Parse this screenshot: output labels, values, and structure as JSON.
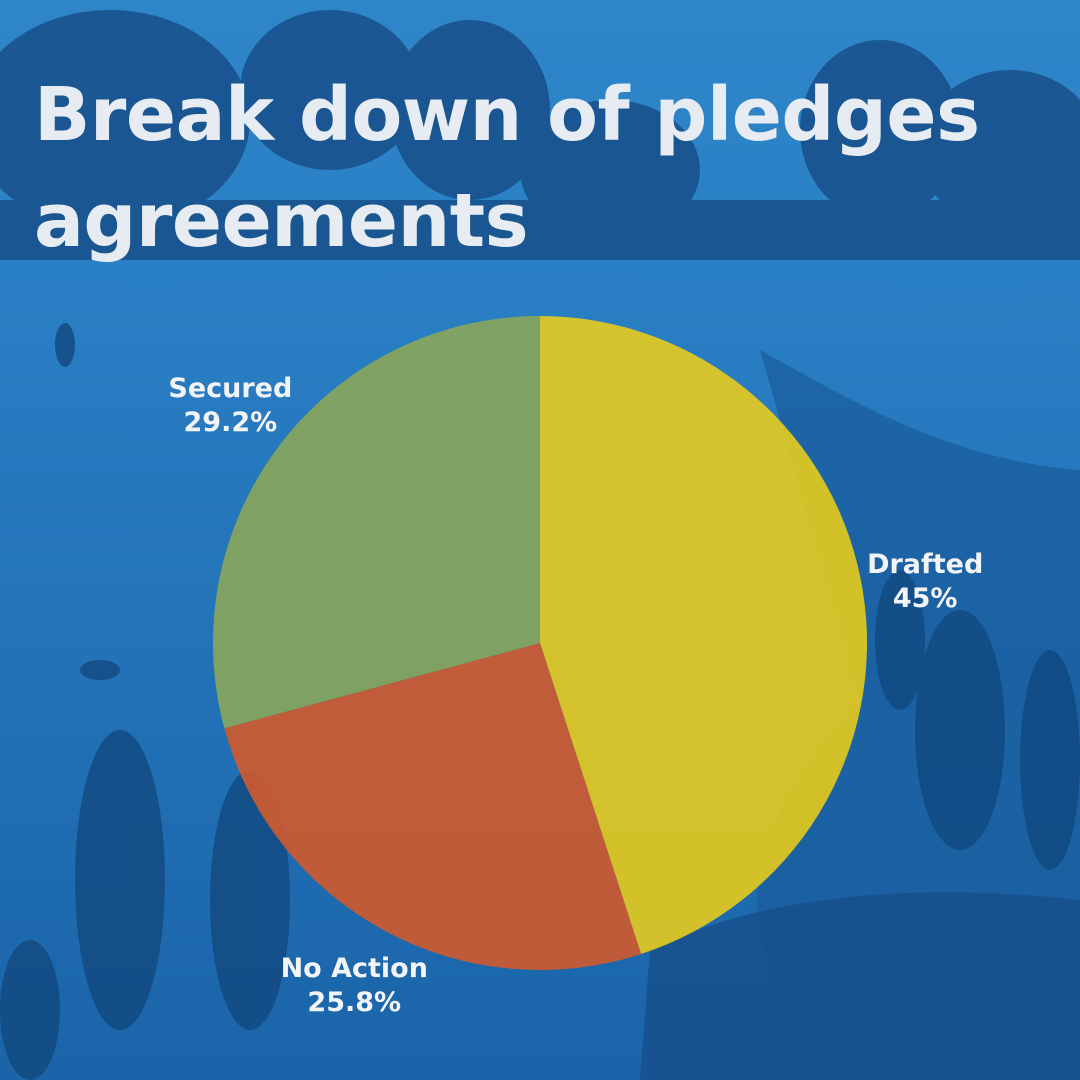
{
  "title": "Break down of pledges agreements",
  "chart_data": {
    "type": "pie",
    "title": "Break down of pledges agreements",
    "slices": [
      {
        "label": "Drafted",
        "value": 45,
        "value_text": "45%",
        "color": "#e7cb1c"
      },
      {
        "label": "No Action",
        "value": 25.8,
        "value_text": "25.8%",
        "color": "#d25a2c"
      },
      {
        "label": "Secured",
        "value": 29.2,
        "value_text": "29.2%",
        "color": "#8aa65a"
      }
    ],
    "start_angle_deg": 0,
    "direction": "clockwise"
  },
  "colors": {
    "background_overlay": "#1f6db5",
    "title_text": "#e7ebf2"
  }
}
